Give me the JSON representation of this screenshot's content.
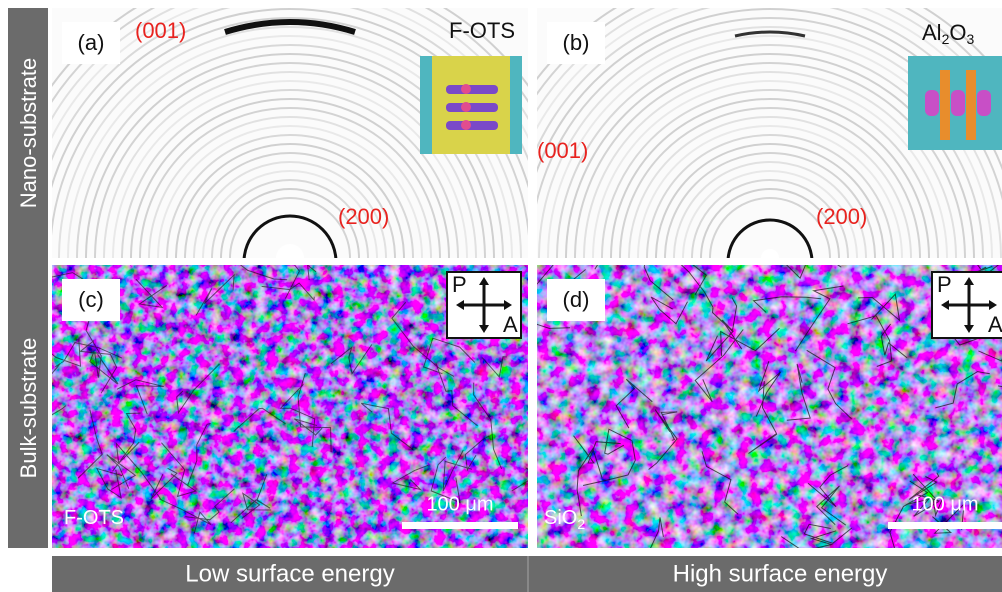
{
  "side_labels": {
    "top": "Nano-substrate",
    "bottom": "Bulk-substrate"
  },
  "panels": [
    {
      "tag": "(a)",
      "sample": [
        "F-OTS"
      ],
      "peaks": [
        "(001)",
        "(200)"
      ]
    },
    {
      "tag": "(b)",
      "sample": [
        "Al",
        "2",
        "O",
        "3"
      ],
      "peaks": [
        "(001)",
        "(200)"
      ]
    },
    {
      "tag": "(c)",
      "polarizer": [
        "P",
        "A"
      ],
      "scale_bar": "100 μm",
      "sample": [
        "F-OTS"
      ]
    },
    {
      "tag": "(d)",
      "polarizer": [
        "P",
        "A"
      ],
      "scale_bar": "100 μm",
      "sample": [
        "SiO",
        "2"
      ]
    }
  ],
  "footer": [
    "Low surface energy",
    "High surface energy"
  ]
}
